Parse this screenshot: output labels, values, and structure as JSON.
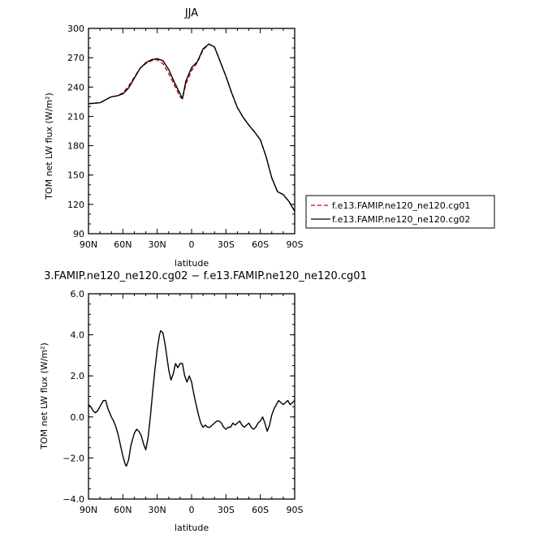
{
  "chart_data": [
    {
      "type": "line",
      "title": "JJA",
      "xlabel": "latitude",
      "ylabel": "TOM net LW flux (W/m²)",
      "xlim": [
        90,
        -90
      ],
      "ylim": [
        90,
        300
      ],
      "xticks": [
        {
          "value": 90,
          "label": "90N"
        },
        {
          "value": 60,
          "label": "60N"
        },
        {
          "value": 30,
          "label": "30N"
        },
        {
          "value": 0,
          "label": "0"
        },
        {
          "value": -30,
          "label": "30S"
        },
        {
          "value": -60,
          "label": "60S"
        },
        {
          "value": -90,
          "label": "90S"
        }
      ],
      "yticks": [
        {
          "value": 90,
          "label": "90"
        },
        {
          "value": 120,
          "label": "120"
        },
        {
          "value": 150,
          "label": "150"
        },
        {
          "value": 180,
          "label": "180"
        },
        {
          "value": 210,
          "label": "210"
        },
        {
          "value": 240,
          "label": "240"
        },
        {
          "value": 270,
          "label": "270"
        },
        {
          "value": 300,
          "label": "300"
        }
      ],
      "legend_position": "right",
      "series": [
        {
          "name": "f.e13.FAMIP.ne120_ne120.cg01",
          "color": "#cc0000",
          "dash": "dashed",
          "points": [
            [
              90,
              223
            ],
            [
              85,
              223.5
            ],
            [
              80,
              224
            ],
            [
              75,
              227
            ],
            [
              70,
              230
            ],
            [
              65,
              231
            ],
            [
              60,
              234
            ],
            [
              55,
              241
            ],
            [
              50,
              250
            ],
            [
              45,
              259
            ],
            [
              40,
              264
            ],
            [
              35,
              267
            ],
            [
              30,
              268
            ],
            [
              25,
              264
            ],
            [
              20,
              254
            ],
            [
              15,
              242
            ],
            [
              10,
              230
            ],
            [
              8,
              228
            ],
            [
              5,
              243
            ],
            [
              0,
              257
            ],
            [
              -5,
              265
            ],
            [
              -10,
              278
            ],
            [
              -15,
              284
            ],
            [
              -20,
              281
            ],
            [
              -25,
              266
            ],
            [
              -30,
              251
            ],
            [
              -35,
              234
            ],
            [
              -40,
              219
            ],
            [
              -45,
              209
            ],
            [
              -50,
              201
            ],
            [
              -55,
              194
            ],
            [
              -60,
              186
            ],
            [
              -65,
              169
            ],
            [
              -70,
              147
            ],
            [
              -75,
              133
            ],
            [
              -80,
              130
            ],
            [
              -85,
              123
            ],
            [
              -90,
              113
            ]
          ]
        },
        {
          "name": "f.e13.FAMIP.ne120_ne120.cg02",
          "color": "#000000",
          "dash": "solid",
          "points": [
            [
              90,
              223
            ],
            [
              85,
              223.5
            ],
            [
              80,
              224
            ],
            [
              75,
              227
            ],
            [
              70,
              230
            ],
            [
              65,
              231
            ],
            [
              60,
              233
            ],
            [
              55,
              239
            ],
            [
              50,
              249
            ],
            [
              45,
              259
            ],
            [
              40,
              265
            ],
            [
              35,
              268
            ],
            [
              30,
              269
            ],
            [
              25,
              267
            ],
            [
              20,
              258
            ],
            [
              15,
              245
            ],
            [
              10,
              233
            ],
            [
              8,
              228
            ],
            [
              5,
              246
            ],
            [
              0,
              260
            ],
            [
              -5,
              266
            ],
            [
              -10,
              279
            ],
            [
              -15,
              284
            ],
            [
              -20,
              281
            ],
            [
              -25,
              266
            ],
            [
              -30,
              251
            ],
            [
              -35,
              234
            ],
            [
              -40,
              219
            ],
            [
              -45,
              209
            ],
            [
              -50,
              201
            ],
            [
              -55,
              194
            ],
            [
              -60,
              186
            ],
            [
              -65,
              169
            ],
            [
              -70,
              147
            ],
            [
              -75,
              133
            ],
            [
              -80,
              130
            ],
            [
              -85,
              123
            ],
            [
              -90,
              113
            ]
          ]
        }
      ]
    },
    {
      "type": "line",
      "title": "3.FAMIP.ne120_ne120.cg02 − f.e13.FAMIP.ne120_ne120.cg01",
      "xlabel": "latitude",
      "ylabel": "TOM net LW flux (W/m²)",
      "xlim": [
        90,
        -90
      ],
      "ylim": [
        -4,
        6
      ],
      "xticks": [
        {
          "value": 90,
          "label": "90N"
        },
        {
          "value": 60,
          "label": "60N"
        },
        {
          "value": 30,
          "label": "30N"
        },
        {
          "value": 0,
          "label": "0"
        },
        {
          "value": -30,
          "label": "30S"
        },
        {
          "value": -60,
          "label": "60S"
        },
        {
          "value": -90,
          "label": "90S"
        }
      ],
      "yticks": [
        {
          "value": -4,
          "label": "−4.0"
        },
        {
          "value": -2,
          "label": "−2.0"
        },
        {
          "value": 0,
          "label": "0.0"
        },
        {
          "value": 2,
          "label": "2.0"
        },
        {
          "value": 4,
          "label": "4.0"
        },
        {
          "value": 6,
          "label": "6.0"
        }
      ],
      "series": [
        {
          "color": "#000000",
          "dash": "solid",
          "points": [
            [
              90,
              0.6
            ],
            [
              88,
              0.5
            ],
            [
              86,
              0.3
            ],
            [
              84,
              0.2
            ],
            [
              82,
              0.3
            ],
            [
              80,
              0.5
            ],
            [
              77,
              0.8
            ],
            [
              75,
              0.8
            ],
            [
              73,
              0.4
            ],
            [
              70,
              0.0
            ],
            [
              68,
              -0.2
            ],
            [
              66,
              -0.5
            ],
            [
              64,
              -0.9
            ],
            [
              62,
              -1.4
            ],
            [
              60,
              -1.9
            ],
            [
              58,
              -2.3
            ],
            [
              57,
              -2.4
            ],
            [
              55,
              -2.1
            ],
            [
              53,
              -1.4
            ],
            [
              50,
              -0.8
            ],
            [
              48,
              -0.6
            ],
            [
              46,
              -0.7
            ],
            [
              44,
              -0.9
            ],
            [
              42,
              -1.3
            ],
            [
              40,
              -1.6
            ],
            [
              38,
              -1.0
            ],
            [
              36,
              0.0
            ],
            [
              34,
              1.2
            ],
            [
              32,
              2.3
            ],
            [
              30,
              3.3
            ],
            [
              28,
              4.0
            ],
            [
              27,
              4.2
            ],
            [
              25,
              4.1
            ],
            [
              23,
              3.5
            ],
            [
              21,
              2.7
            ],
            [
              20,
              2.3
            ],
            [
              18,
              1.8
            ],
            [
              16,
              2.1
            ],
            [
              14,
              2.6
            ],
            [
              12,
              2.4
            ],
            [
              10,
              2.6
            ],
            [
              8,
              2.6
            ],
            [
              6,
              2.0
            ],
            [
              4,
              1.7
            ],
            [
              2,
              2.0
            ],
            [
              0,
              1.7
            ],
            [
              -2,
              1.1
            ],
            [
              -4,
              0.6
            ],
            [
              -6,
              0.1
            ],
            [
              -8,
              -0.3
            ],
            [
              -10,
              -0.5
            ],
            [
              -12,
              -0.4
            ],
            [
              -14,
              -0.5
            ],
            [
              -16,
              -0.5
            ],
            [
              -18,
              -0.4
            ],
            [
              -20,
              -0.3
            ],
            [
              -22,
              -0.2
            ],
            [
              -24,
              -0.2
            ],
            [
              -26,
              -0.3
            ],
            [
              -28,
              -0.5
            ],
            [
              -30,
              -0.6
            ],
            [
              -32,
              -0.5
            ],
            [
              -34,
              -0.5
            ],
            [
              -36,
              -0.3
            ],
            [
              -38,
              -0.4
            ],
            [
              -40,
              -0.3
            ],
            [
              -42,
              -0.2
            ],
            [
              -44,
              -0.4
            ],
            [
              -46,
              -0.5
            ],
            [
              -48,
              -0.4
            ],
            [
              -50,
              -0.3
            ],
            [
              -52,
              -0.5
            ],
            [
              -54,
              -0.6
            ],
            [
              -56,
              -0.5
            ],
            [
              -58,
              -0.3
            ],
            [
              -60,
              -0.2
            ],
            [
              -62,
              0.0
            ],
            [
              -64,
              -0.3
            ],
            [
              -66,
              -0.7
            ],
            [
              -68,
              -0.4
            ],
            [
              -70,
              0.1
            ],
            [
              -72,
              0.4
            ],
            [
              -74,
              0.6
            ],
            [
              -76,
              0.8
            ],
            [
              -78,
              0.7
            ],
            [
              -80,
              0.6
            ],
            [
              -82,
              0.7
            ],
            [
              -84,
              0.8
            ],
            [
              -86,
              0.6
            ],
            [
              -88,
              0.7
            ],
            [
              -90,
              0.8
            ]
          ]
        }
      ]
    }
  ]
}
